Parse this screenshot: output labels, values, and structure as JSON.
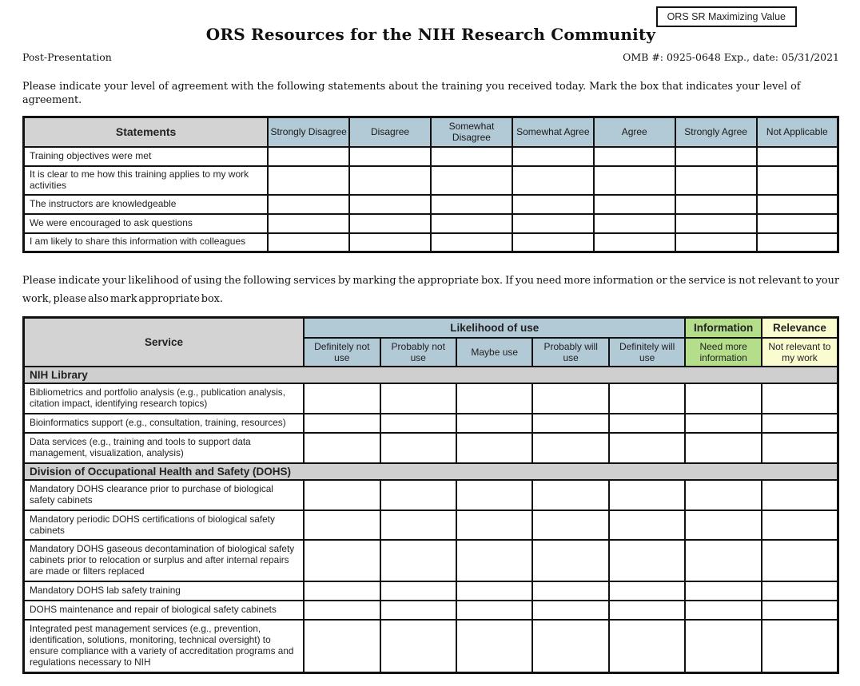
{
  "header": {
    "corner_box": "ORS SR Maximizing Value",
    "title": "ORS Resources for the NIH Research Community",
    "phase": "Post-Presentation",
    "omb": "OMB #: 0925-0648 Exp., date: 05/31/2021"
  },
  "agreement": {
    "instruction": "Please indicate your level of agreement with the following statements about the training you received today. Mark the box that indicates your level of agreement.",
    "header_label": "Statements",
    "columns": [
      "Strongly Disagree",
      "Disagree",
      "Somewhat Disagree",
      "Somewhat Agree",
      "Agree",
      "Strongly Agree",
      "Not Applicable"
    ],
    "rows": [
      "Training objectives were met",
      "It is clear to me how this training applies to my work activities",
      "The instructors are knowledgeable",
      "We were encouraged to ask questions",
      "I am likely to share this information with colleagues"
    ]
  },
  "services": {
    "instruction": "Please indicate your likelihood of using the following services by marking the appropriate box. If you need more information or the service is not relevant to your work, please also mark appropriate box.",
    "header_label": "Service",
    "groups": [
      "Likelihood of use",
      "Information",
      "Relevance"
    ],
    "columns": [
      "Definitely not use",
      "Probably not use",
      "Maybe use",
      "Probably will use",
      "Definitely will use",
      "Need more information",
      "Not relevant to my work"
    ],
    "sections": [
      {
        "title": "NIH Library",
        "rows": [
          "Bibliometrics and portfolio analysis (e.g., publication analysis, citation impact, identifying research topics)",
          "Bioinformatics support (e.g., consultation, training, resources)",
          "Data services (e.g., training and tools to support data management, visualization, analysis)"
        ]
      },
      {
        "title": "Division of Occupational Health and Safety (DOHS)",
        "rows": [
          "Mandatory DOHS clearance prior to purchase of biological safety cabinets",
          "Mandatory periodic DOHS certifications of biological safety cabinets",
          "Mandatory DOHS gaseous decontamination of biological safety cabinets prior to relocation or surplus and after internal repairs are made or filters replaced",
          "Mandatory DOHS lab safety training",
          "DOHS maintenance and repair of biological safety cabinets",
          "Integrated pest management services (e.g., prevention, identification, solutions, monitoring, technical oversight) to ensure compliance with a variety of accreditation programs and regulations necessary to NIH"
        ]
      }
    ]
  },
  "colors": {
    "header_blue": "#b2c9d6",
    "header_gray": "#d3d3d3",
    "section_gray": "#cfcfcf",
    "info_green": "#b4de8a",
    "relevance_yellow": "#fbfbd0",
    "border_black": "#111111"
  }
}
